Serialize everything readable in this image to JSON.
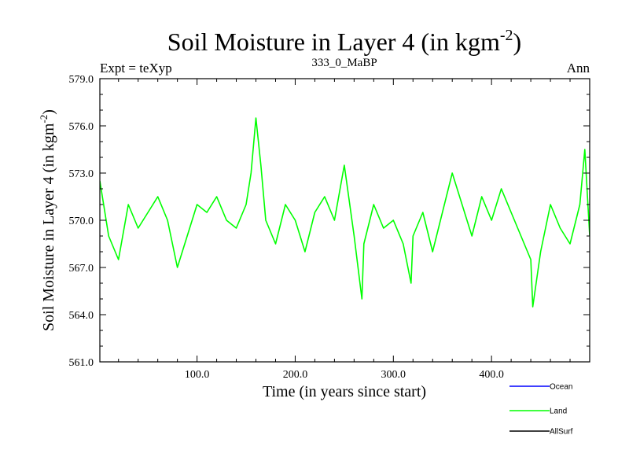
{
  "chart_data": {
    "type": "line",
    "title": "Soil Moisture in Layer 4 (in kgm",
    "title_sup": "-2",
    "title_end": ")",
    "subtitle_left": "Expt = teXyp",
    "subtitle_center": "333_0_MaBP",
    "subtitle_right": "Ann",
    "xlabel": "Time (in years since start)",
    "ylabel": "Soil Moisture in Layer 4 (in kgm",
    "ylabel_sup": "-2",
    "ylabel_end": ")",
    "xlim": [
      1,
      500
    ],
    "ylim": [
      561,
      579
    ],
    "x_ticks": [
      100,
      200,
      300,
      400
    ],
    "x_tick_labels": [
      "100.0",
      "200.0",
      "300.0",
      "400.0"
    ],
    "y_ticks": [
      561,
      564,
      567,
      570,
      573,
      576,
      579
    ],
    "y_tick_labels": [
      "561.0",
      "564.0",
      "567.0",
      "570.0",
      "573.0",
      "576.0",
      "579.0"
    ],
    "grid": false,
    "legend_position": "bottom-right",
    "series": [
      {
        "name": "Ocean",
        "color": "#0000ff",
        "x": [],
        "values": []
      },
      {
        "name": "Land",
        "color": "#00ff00",
        "x": [
          1,
          10,
          20,
          30,
          40,
          50,
          60,
          70,
          80,
          90,
          100,
          110,
          120,
          130,
          140,
          150,
          155,
          160,
          165,
          170,
          180,
          190,
          200,
          210,
          220,
          230,
          240,
          250,
          260,
          268,
          270,
          280,
          290,
          300,
          310,
          318,
          320,
          330,
          340,
          350,
          360,
          370,
          380,
          390,
          400,
          410,
          420,
          430,
          440,
          442,
          450,
          460,
          470,
          480,
          490,
          495,
          500
        ],
        "values": [
          572.5,
          569.0,
          567.5,
          571.0,
          569.5,
          570.5,
          571.5,
          570.0,
          567.0,
          569.0,
          571.0,
          570.5,
          571.5,
          570.0,
          569.5,
          571.0,
          573.0,
          576.5,
          573.5,
          570.0,
          568.5,
          571.0,
          570.0,
          568.0,
          570.5,
          571.5,
          570.0,
          573.5,
          569.0,
          565.0,
          568.5,
          571.0,
          569.5,
          570.0,
          568.5,
          566.0,
          569.0,
          570.5,
          568.0,
          570.5,
          573.0,
          571.0,
          569.0,
          571.5,
          570.0,
          572.0,
          570.5,
          569.0,
          567.5,
          564.5,
          568.0,
          571.0,
          569.5,
          568.5,
          571.0,
          574.5,
          569.0
        ]
      },
      {
        "name": "AllSurf",
        "color": "#000000",
        "x": [],
        "values": []
      }
    ]
  }
}
